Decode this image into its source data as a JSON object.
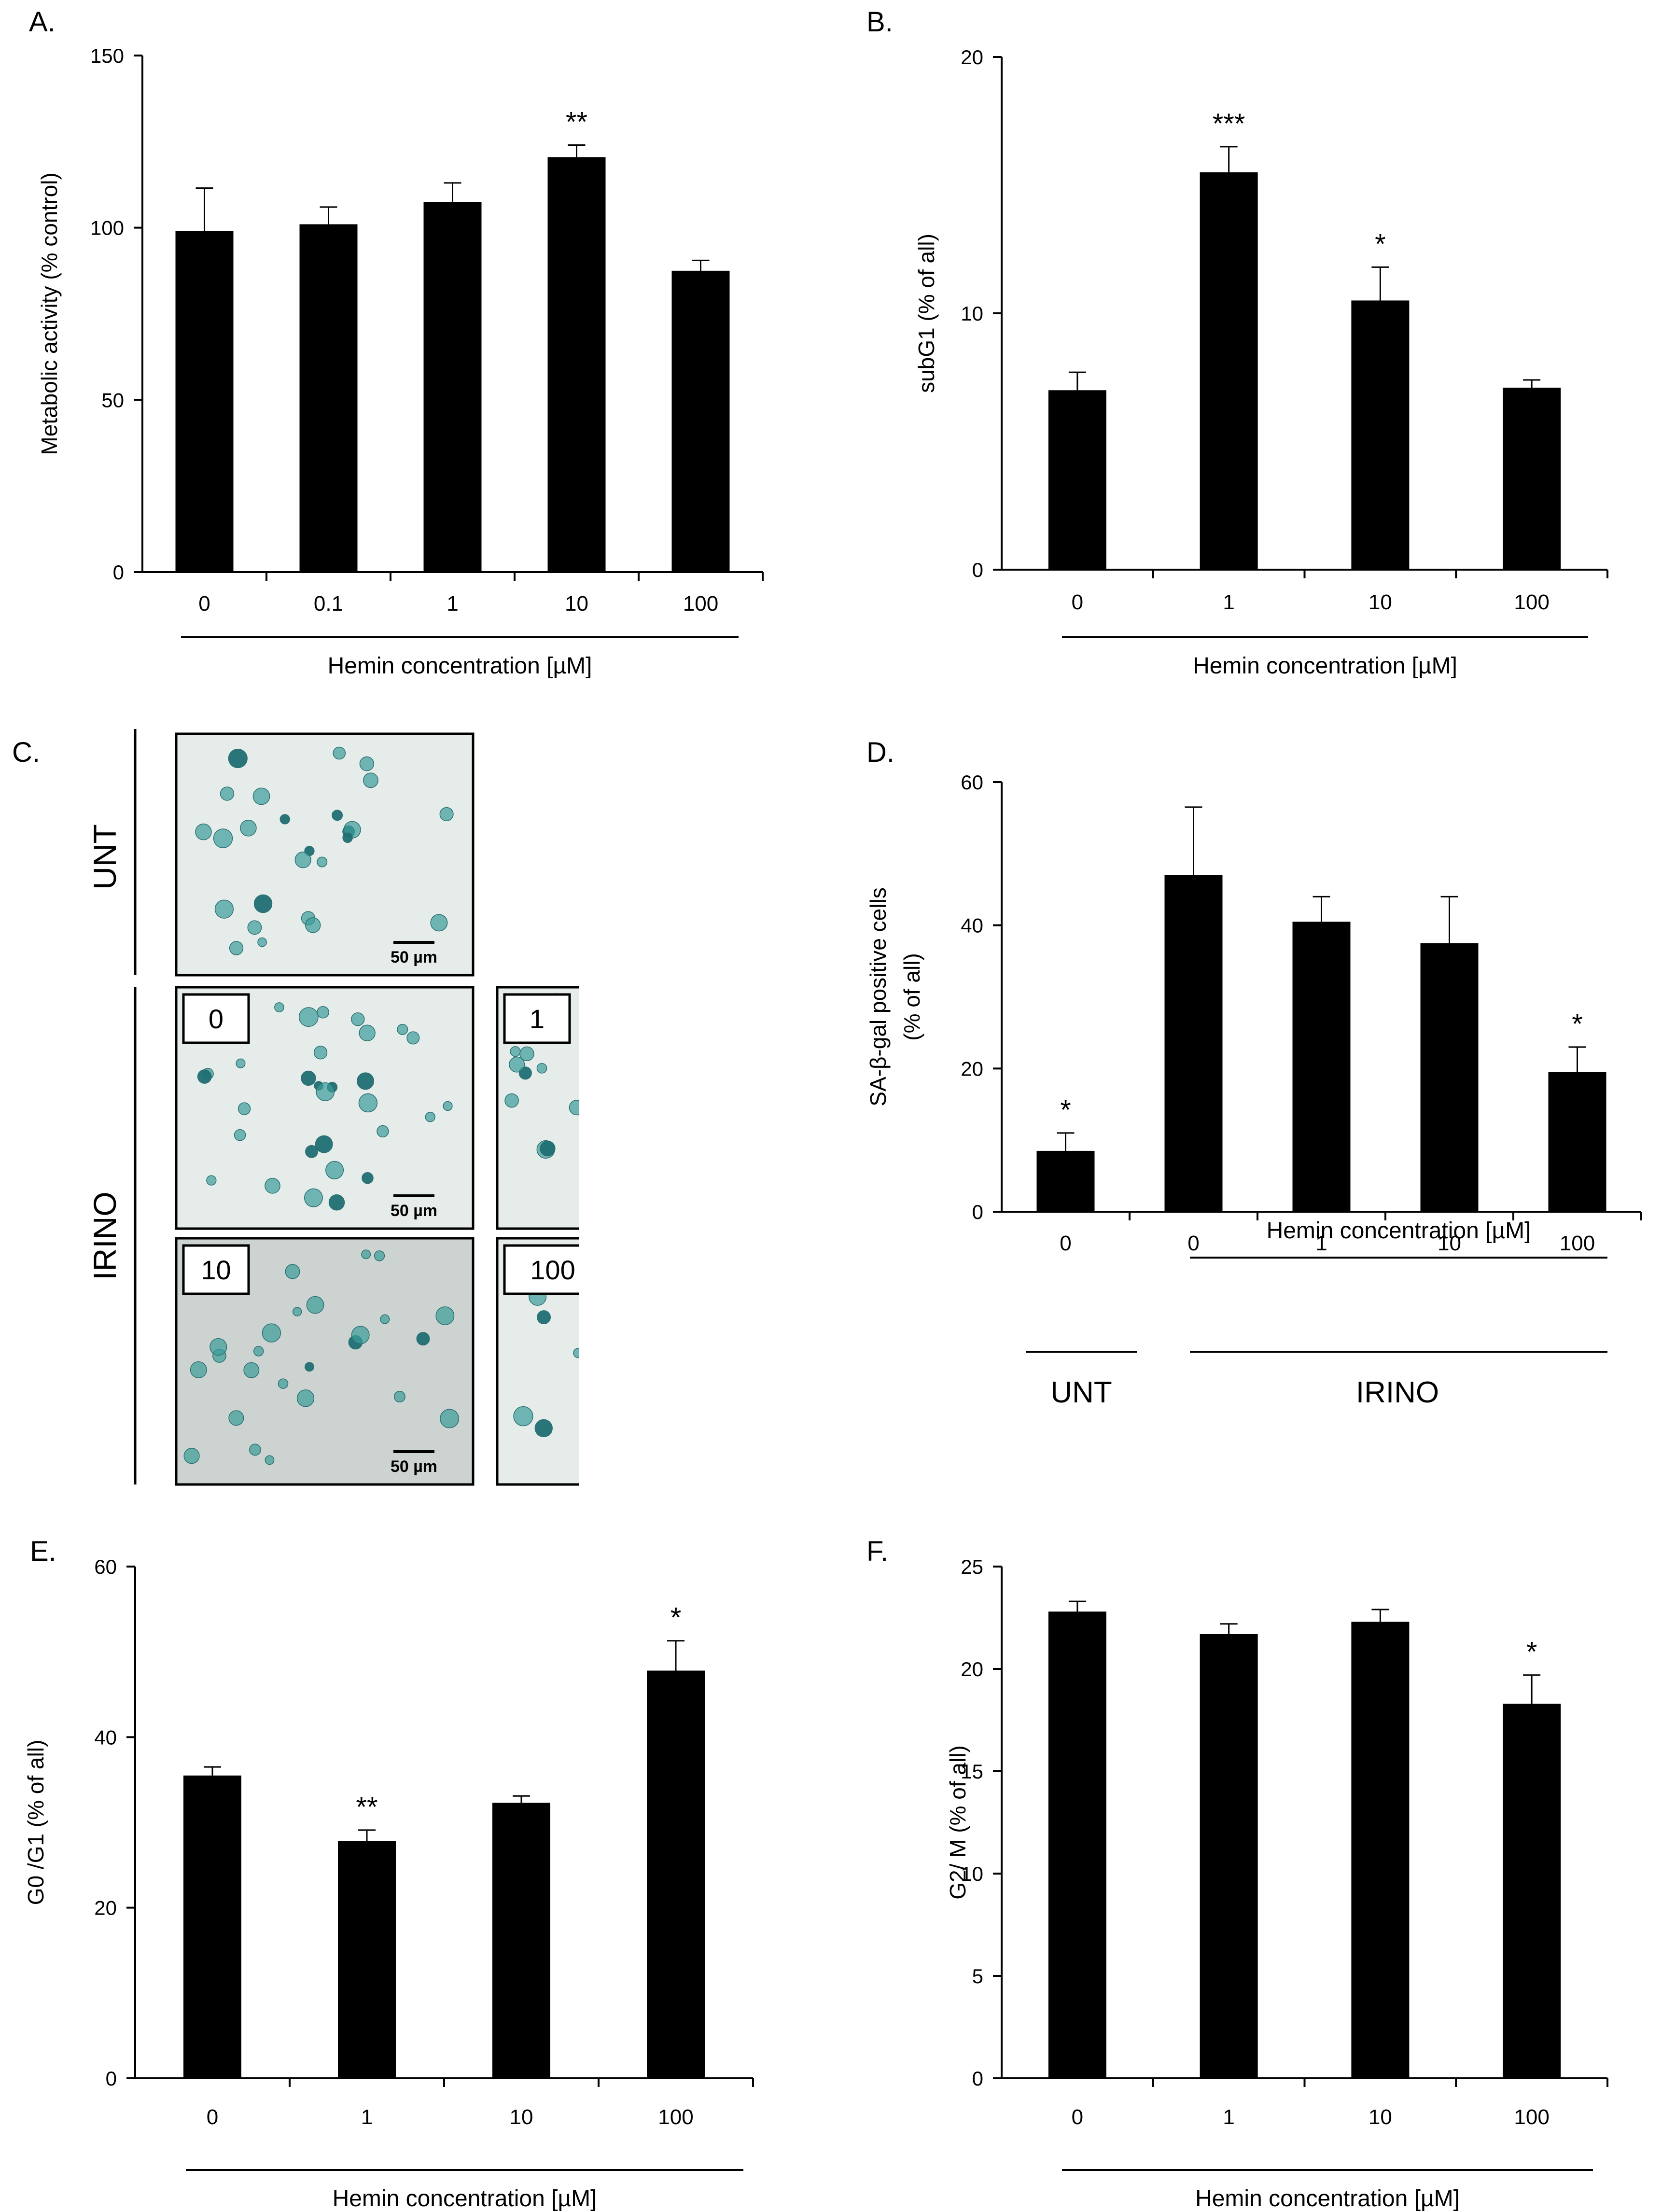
{
  "chart_data": [
    {
      "id": "A",
      "panel_label": "A.",
      "type": "bar",
      "categories": [
        "0",
        "0.1",
        "1",
        "10",
        "100"
      ],
      "values": [
        99,
        101,
        107.5,
        120.5,
        87.5
      ],
      "errors": [
        12.5,
        5,
        5.5,
        3.5,
        3
      ],
      "significance": [
        "",
        "",
        "",
        "**",
        ""
      ],
      "ylabel": "Metabolic activity (% control)",
      "xlabel": "Hemin concentration [µM]",
      "ylim": [
        0,
        150
      ],
      "yticks": [
        0,
        50,
        100,
        150
      ],
      "grid": false
    },
    {
      "id": "B",
      "panel_label": "B.",
      "type": "bar",
      "categories": [
        "0",
        "1",
        "10",
        "100"
      ],
      "values": [
        7,
        15.5,
        10.5,
        7.1
      ],
      "errors": [
        0.7,
        1,
        1.3,
        0.3
      ],
      "significance": [
        "",
        "***",
        "*",
        ""
      ],
      "ylabel": "subG1 (% of all)",
      "xlabel": "Hemin concentration [µM]",
      "ylim": [
        0,
        20
      ],
      "yticks": [
        0,
        10,
        20
      ],
      "grid": false
    },
    {
      "id": "D",
      "panel_label": "D.",
      "type": "bar",
      "categories": [
        "0",
        "0",
        "1",
        "10",
        "100"
      ],
      "values": [
        8.5,
        47,
        40.5,
        37.5,
        19.5
      ],
      "errors": [
        2.5,
        9.5,
        3.5,
        6.5,
        3.5
      ],
      "significance": [
        "*",
        "",
        "",
        "",
        "*"
      ],
      "ylabel": "SA-β-gal positive cells",
      "ylabel2": "(% of all)",
      "xlabel": "Hemin concentration [µM]",
      "group_labels": [
        "UNT",
        "IRINO"
      ],
      "ylim": [
        0,
        60
      ],
      "yticks": [
        0,
        20,
        40,
        60
      ],
      "grid": false
    },
    {
      "id": "E",
      "panel_label": "E.",
      "type": "bar",
      "categories": [
        "0",
        "1",
        "10",
        "100"
      ],
      "values": [
        35.5,
        27.8,
        32.3,
        47.8
      ],
      "errors": [
        1,
        1.3,
        0.8,
        3.5
      ],
      "significance": [
        "",
        "**",
        "",
        "*"
      ],
      "ylabel": "G0 /G1 (% of all)",
      "xlabel": "Hemin concentration [µM]",
      "ylim": [
        0,
        60
      ],
      "yticks": [
        0,
        20,
        40,
        60
      ],
      "grid": false
    },
    {
      "id": "F",
      "panel_label": "F.",
      "type": "bar",
      "categories": [
        "0",
        "1",
        "10",
        "100"
      ],
      "values": [
        22.8,
        21.7,
        22.3,
        18.3
      ],
      "errors": [
        0.5,
        0.5,
        0.6,
        1.4
      ],
      "significance": [
        "",
        "",
        "",
        "*"
      ],
      "ylabel": "G2/ M (% of all)",
      "xlabel": "Hemin concentration [µM]",
      "ylim": [
        0,
        25
      ],
      "yticks": [
        0,
        5,
        10,
        15,
        20,
        25
      ],
      "grid": false
    }
  ],
  "micrographs": {
    "panel_label": "C.",
    "row_labels": {
      "unt": "UNT",
      "irino": "IRINO"
    },
    "scale_bar": "50 µm",
    "tiles": [
      {
        "id": "unt",
        "label": ""
      },
      {
        "id": "irino-0",
        "label": "0"
      },
      {
        "id": "irino-1",
        "label": "1"
      },
      {
        "id": "irino-10",
        "label": "10"
      },
      {
        "id": "irino-100",
        "label": "100"
      }
    ]
  },
  "colors": {
    "bar": "#000000",
    "cell_stain": "#3a9c9a",
    "cell_dark": "#1f6f73",
    "background_tile": "#e6ecea"
  }
}
